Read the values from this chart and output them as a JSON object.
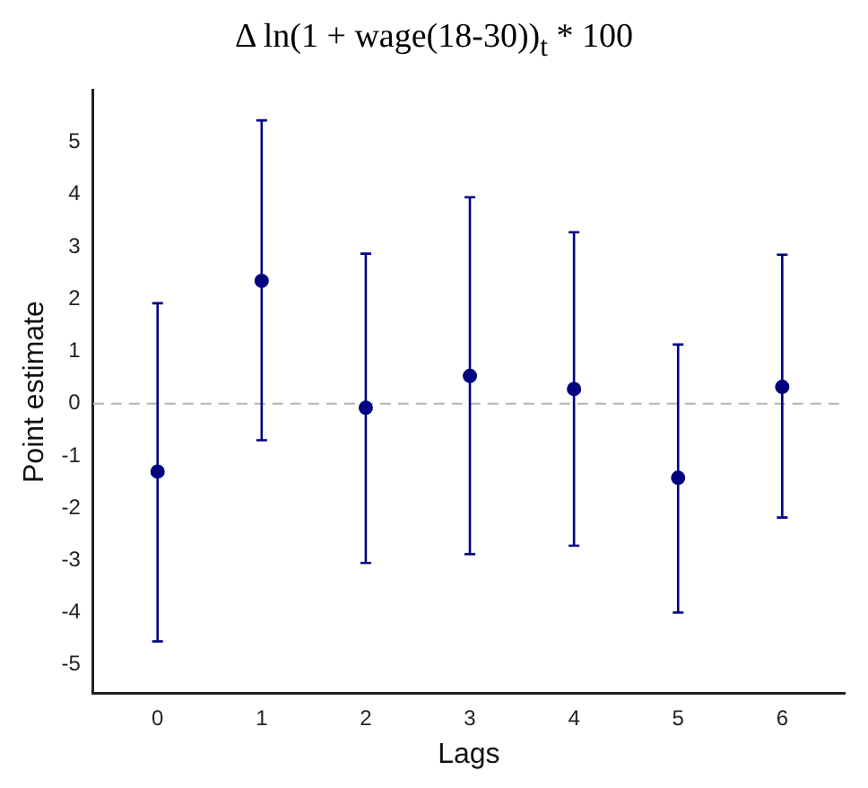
{
  "chart_data": {
    "type": "scatter",
    "title": "Δ ln(1 + wage(18-30))$_{t}$ * 100",
    "xlabel": "Lags",
    "ylabel": "Point estimate",
    "x": [
      0,
      1,
      2,
      3,
      4,
      5,
      6
    ],
    "values": [
      -1.3,
      2.35,
      -0.08,
      0.53,
      0.28,
      -1.42,
      0.32
    ],
    "errors": [
      [
        -4.55,
        1.92
      ],
      [
        -0.7,
        5.42
      ],
      [
        -3.05,
        2.87
      ],
      [
        -2.88,
        3.95
      ],
      [
        -2.72,
        3.28
      ],
      [
        -4.0,
        1.13
      ],
      [
        -2.18,
        2.85
      ]
    ],
    "color": "#000080",
    "marker": "circle",
    "grid": false,
    "legend": false,
    "xlim": [
      -0.62,
      6.6
    ],
    "xticks": [
      0,
      1,
      2,
      3,
      4,
      5,
      6
    ],
    "ylim": [
      -5.55,
      6.0
    ],
    "yticks": [
      -5,
      -4,
      -3,
      -2,
      -1,
      0,
      1,
      2,
      3,
      4,
      5
    ],
    "ref_lines": [
      {
        "axis": "y",
        "value": 0,
        "color": "#b3b3b3",
        "line_style": "dashed"
      }
    ]
  }
}
